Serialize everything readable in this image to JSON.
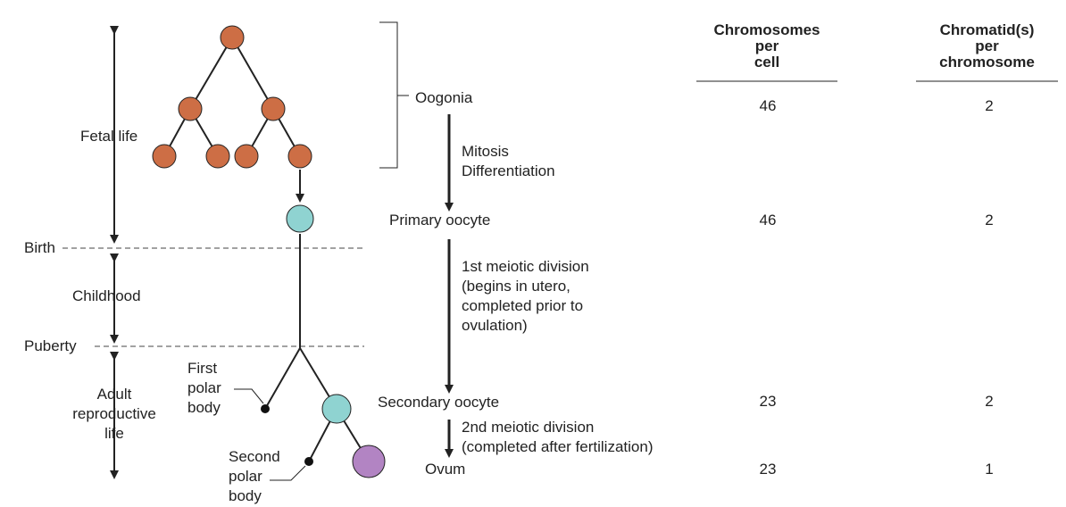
{
  "life_stages": {
    "fetal_life": "Fetal life",
    "birth": "Birth",
    "childhood": "Childhood",
    "puberty": "Puberty",
    "adult": "Adult\nreproductive\nlife"
  },
  "cells": {
    "oogonia": "Oogonia",
    "primary_oocyte": "Primary oocyte",
    "secondary_oocyte": "Secondary oocyte",
    "ovum": "Ovum",
    "first_polar_body": "First\npolar\nbody",
    "second_polar_body": "Second\npolar\nbody"
  },
  "processes": {
    "mitosis": "Mitosis\nDifferentiation",
    "first_meiotic": "1st meiotic division\n(begins in utero,\ncompleted prior to\novulation)",
    "second_meiotic": "2nd meiotic division\n(completed after fertilization)"
  },
  "table": {
    "col1_header": "Chromosomes\nper\ncell",
    "col2_header": "Chromatid(s)\nper\nchromosome",
    "rows": [
      {
        "chromosomes": "46",
        "chromatids": "2"
      },
      {
        "chromosomes": "46",
        "chromatids": "2"
      },
      {
        "chromosomes": "23",
        "chromatids": "2"
      },
      {
        "chromosomes": "23",
        "chromatids": "1"
      }
    ]
  },
  "colors": {
    "oogonia": "#cd6e45",
    "oocyte": "#8fd3d1",
    "ovum": "#b284c3",
    "line": "#222222"
  }
}
